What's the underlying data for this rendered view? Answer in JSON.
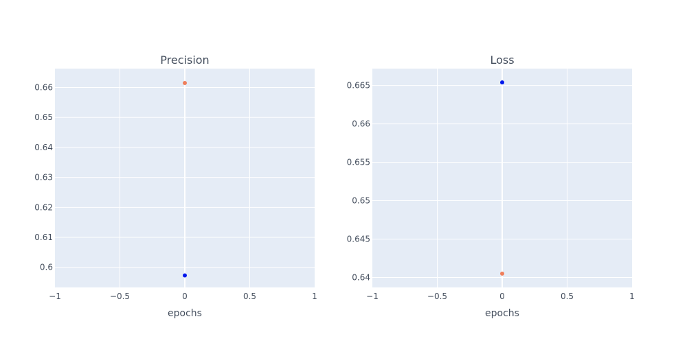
{
  "colors": {
    "plot_background": "#e5ecf6",
    "grid": "#ffffff",
    "text": "#444e5d",
    "series_orange": "#ef7f5c",
    "series_blue": "#0019ec"
  },
  "chart_data": [
    {
      "type": "scatter",
      "title": "Precision",
      "xlabel": "epochs",
      "ylabel": "",
      "xlim": [
        -1,
        1
      ],
      "ylim": [
        0.5933,
        0.6663
      ],
      "grid": true,
      "legend": "none",
      "x_ticks": [
        -1,
        -0.5,
        0,
        0.5,
        1
      ],
      "x_tick_labels": [
        "−1",
        "−0.5",
        "0",
        "0.5",
        "1"
      ],
      "y_ticks": [
        0.6,
        0.61,
        0.62,
        0.63,
        0.64,
        0.65,
        0.66
      ],
      "y_tick_labels": [
        "0.6",
        "0.61",
        "0.62",
        "0.63",
        "0.64",
        "0.65",
        "0.66"
      ],
      "series": [
        {
          "color": "#ef7f5c",
          "x": [
            0
          ],
          "y": [
            0.6615
          ]
        },
        {
          "color": "#0019ec",
          "x": [
            0
          ],
          "y": [
            0.5973
          ]
        }
      ]
    },
    {
      "type": "scatter",
      "title": "Loss",
      "xlabel": "epochs",
      "ylabel": "",
      "xlim": [
        -1,
        1
      ],
      "ylim": [
        0.6387,
        0.6672
      ],
      "grid": true,
      "legend": "none",
      "x_ticks": [
        -1,
        -0.5,
        0,
        0.5,
        1
      ],
      "x_tick_labels": [
        "−1",
        "−0.5",
        "0",
        "0.5",
        "1"
      ],
      "y_ticks": [
        0.64,
        0.645,
        0.65,
        0.655,
        0.66,
        0.665
      ],
      "y_tick_labels": [
        "0.64",
        "0.645",
        "0.65",
        "0.655",
        "0.66",
        "0.665"
      ],
      "series": [
        {
          "color": "#0019ec",
          "x": [
            0
          ],
          "y": [
            0.6654
          ]
        },
        {
          "color": "#ef7f5c",
          "x": [
            0
          ],
          "y": [
            0.6405
          ]
        }
      ]
    }
  ]
}
